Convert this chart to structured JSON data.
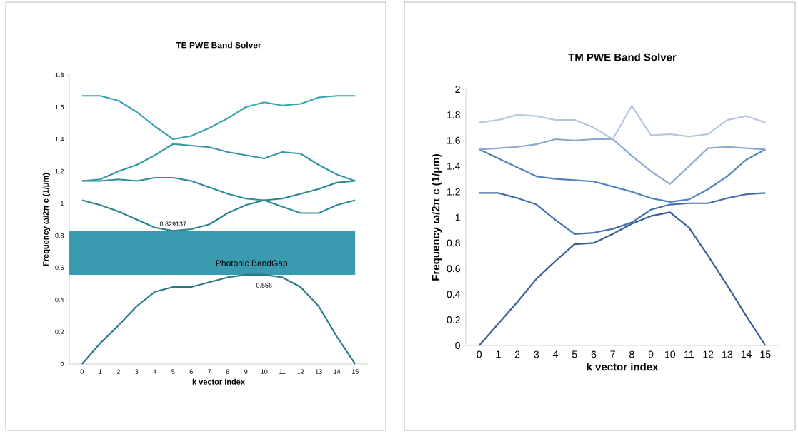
{
  "chart_data": [
    {
      "type": "line",
      "title": "TE PWE Band Solver",
      "xlabel": "k vector index",
      "ylabel": "Frequency ω/2π c (1/μm)",
      "categories": [
        "0",
        "1",
        "2",
        "3",
        "4",
        "5",
        "6",
        "7",
        "8",
        "9",
        "10",
        "11",
        "12",
        "13",
        "14",
        "15"
      ],
      "series": [
        {
          "color": "#267a86",
          "values": [
            0,
            0.13,
            0.24,
            0.36,
            0.45,
            0.48,
            0.48,
            0.51,
            0.54,
            0.556,
            0.556,
            0.54,
            0.48,
            0.36,
            0.17,
            0
          ]
        },
        {
          "color": "#2b8490",
          "values": [
            1.02,
            0.99,
            0.95,
            0.9,
            0.85,
            0.829137,
            0.84,
            0.87,
            0.94,
            0.99,
            1.02,
            1.03,
            1.06,
            1.09,
            1.13,
            1.14
          ]
        },
        {
          "color": "#2f8d99",
          "values": [
            1.14,
            1.14,
            1.15,
            1.14,
            1.16,
            1.16,
            1.14,
            1.1,
            1.06,
            1.03,
            1.02,
            0.98,
            0.94,
            0.94,
            0.99,
            1.02
          ]
        },
        {
          "color": "#3398a6",
          "values": [
            1.14,
            1.15,
            1.2,
            1.24,
            1.3,
            1.37,
            1.36,
            1.35,
            1.32,
            1.3,
            1.28,
            1.32,
            1.31,
            1.24,
            1.18,
            1.14
          ]
        },
        {
          "color": "#38a4b4",
          "values": [
            1.67,
            1.67,
            1.64,
            1.57,
            1.48,
            1.4,
            1.42,
            1.47,
            1.53,
            1.6,
            1.63,
            1.61,
            1.62,
            1.66,
            1.67,
            1.67
          ]
        }
      ],
      "ylim": [
        0,
        1.8
      ],
      "yticks": [
        0,
        0.2,
        0.4,
        0.6,
        0.8,
        1,
        1.2,
        1.4,
        1.6,
        1.8
      ],
      "bands": [
        {
          "axis": "y",
          "from": 0.556,
          "to": 0.829137,
          "label": "Photonic BandGap",
          "color": "#3a9bb0"
        }
      ],
      "annotations": [
        {
          "text": "0.829137",
          "x": "5",
          "y": 0.829137
        },
        {
          "text": "0.556",
          "x": "10",
          "y": 0.556
        }
      ],
      "grid": false
    },
    {
      "type": "line",
      "title": "TM PWE Band Solver",
      "xlabel": "k vector index",
      "ylabel": "Frequency ω/2π c (1/μm)",
      "categories": [
        "0",
        "1",
        "2",
        "3",
        "4",
        "5",
        "6",
        "7",
        "8",
        "9",
        "10",
        "11",
        "12",
        "13",
        "14",
        "15"
      ],
      "series": [
        {
          "color": "#3a5f95",
          "values": [
            0,
            0.17,
            0.34,
            0.52,
            0.66,
            0.79,
            0.8,
            0.87,
            0.95,
            1.01,
            1.04,
            0.92,
            0.7,
            0.47,
            0.23,
            0
          ]
        },
        {
          "color": "#4470ab",
          "values": [
            1.19,
            1.19,
            1.15,
            1.1,
            0.98,
            0.87,
            0.88,
            0.91,
            0.96,
            1.06,
            1.1,
            1.11,
            1.11,
            1.15,
            1.18,
            1.19
          ]
        },
        {
          "color": "#4f84c4",
          "values": [
            1.53,
            1.46,
            1.39,
            1.32,
            1.3,
            1.29,
            1.28,
            1.24,
            1.2,
            1.15,
            1.12,
            1.14,
            1.22,
            1.32,
            1.45,
            1.53
          ]
        },
        {
          "color": "#8ba8d2",
          "values": [
            1.53,
            1.54,
            1.55,
            1.57,
            1.61,
            1.6,
            1.61,
            1.61,
            1.48,
            1.36,
            1.26,
            1.4,
            1.54,
            1.55,
            1.54,
            1.53
          ]
        },
        {
          "color": "#b6c6e0",
          "values": [
            1.74,
            1.76,
            1.8,
            1.79,
            1.76,
            1.76,
            1.7,
            1.61,
            1.87,
            1.64,
            1.65,
            1.63,
            1.65,
            1.76,
            1.79,
            1.74
          ]
        }
      ],
      "ylim": [
        0,
        2
      ],
      "yticks": [
        0,
        0.2,
        0.4,
        0.6,
        0.8,
        1,
        1.2,
        1.4,
        1.6,
        1.8,
        2
      ],
      "grid": false
    }
  ]
}
